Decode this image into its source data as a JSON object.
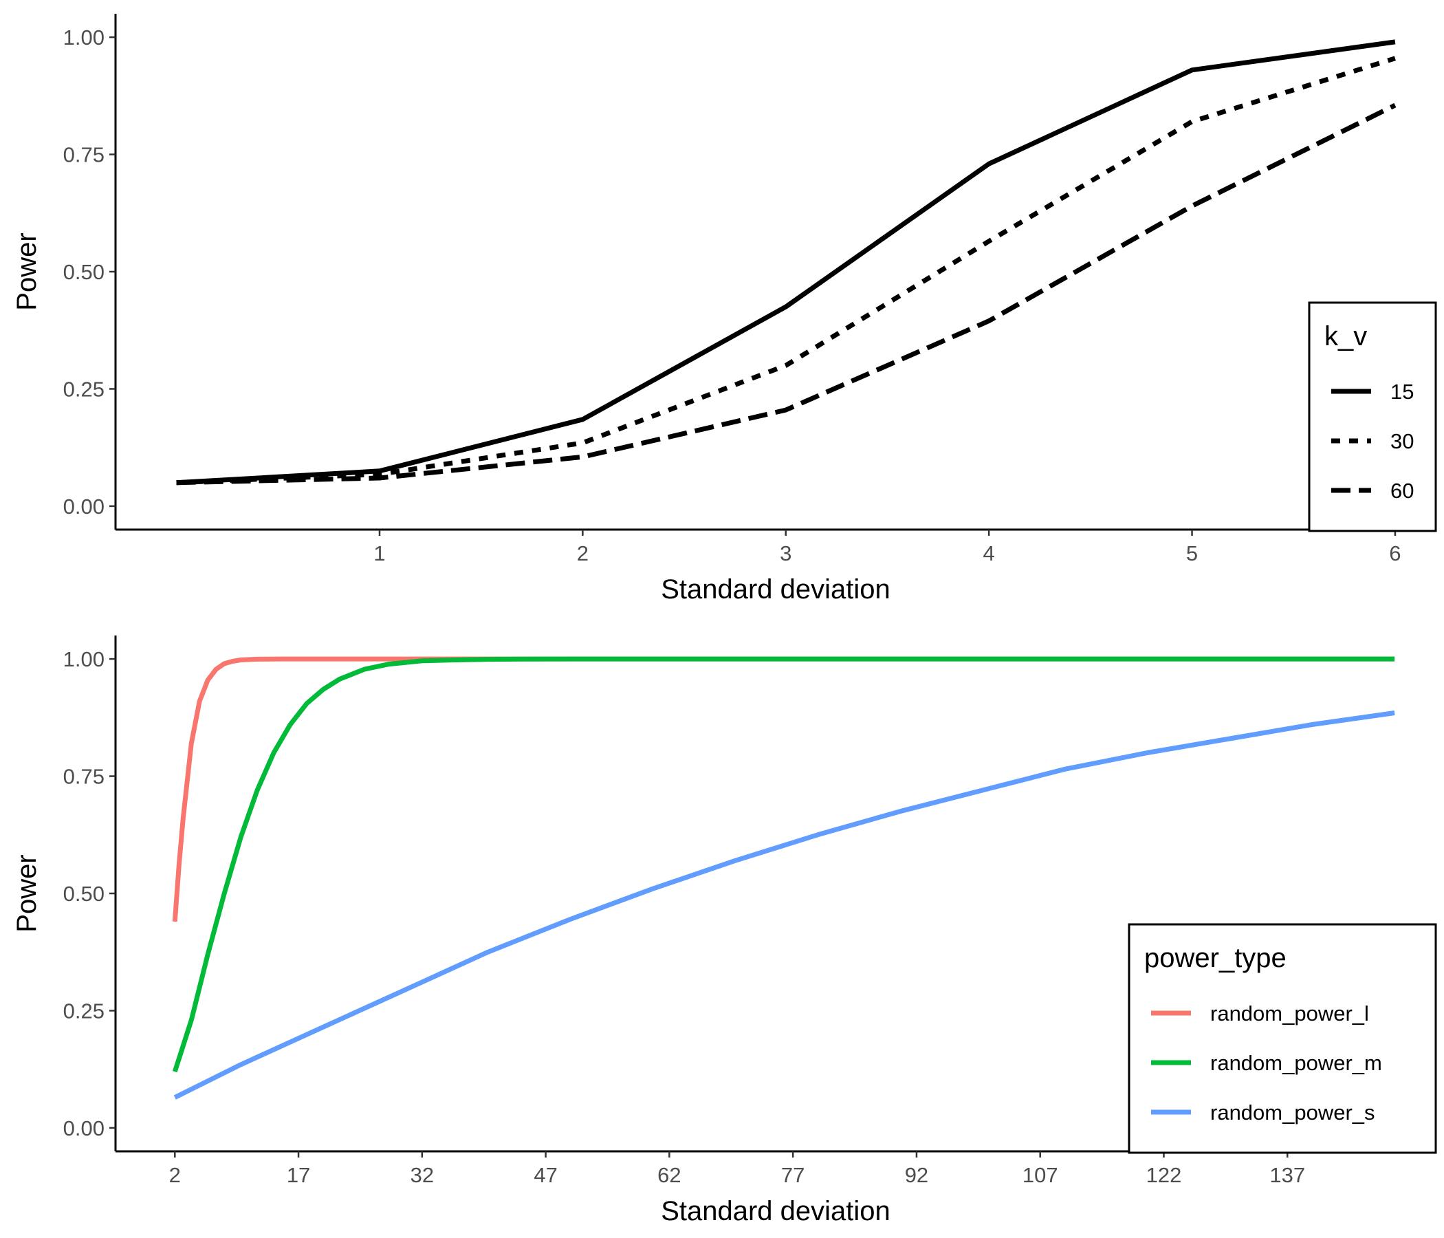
{
  "chart_data": [
    {
      "type": "line",
      "xlabel": "Standard deviation",
      "ylabel": "Power",
      "x": [
        0,
        1,
        2,
        3,
        4,
        5,
        6
      ],
      "xticks": [
        1,
        2,
        3,
        4,
        5,
        6
      ],
      "yticks": [
        "0.00",
        "0.25",
        "0.50",
        "0.75",
        "1.00"
      ],
      "xlim": [
        -0.3,
        6.2
      ],
      "ylim": [
        -0.05,
        1.05
      ],
      "grid": false,
      "legend_position": "bottom-right",
      "legend_title": "k_v",
      "series": [
        {
          "name": "15",
          "linetype": "solid",
          "values": [
            0.05,
            0.075,
            0.185,
            0.425,
            0.73,
            0.93,
            0.99
          ]
        },
        {
          "name": "30",
          "linetype": "dotted",
          "values": [
            0.05,
            0.068,
            0.135,
            0.3,
            0.565,
            0.82,
            0.955
          ]
        },
        {
          "name": "60",
          "linetype": "dashed",
          "values": [
            0.05,
            0.06,
            0.105,
            0.205,
            0.395,
            0.64,
            0.855
          ]
        }
      ]
    },
    {
      "type": "line",
      "xlabel": "Standard deviation",
      "ylabel": "Power",
      "xticks": [
        2,
        17,
        32,
        47,
        62,
        77,
        92,
        107,
        122,
        137
      ],
      "yticks": [
        "0.00",
        "0.25",
        "0.50",
        "0.75",
        "1.00"
      ],
      "xlim": [
        -5.2,
        155
      ],
      "ylim": [
        -0.05,
        1.05
      ],
      "grid": false,
      "legend_position": "bottom-right",
      "legend_title": "power_type",
      "series": [
        {
          "name": "random_power_l",
          "color": "#F8766D",
          "x": [
            2,
            2.5,
            3,
            4,
            5,
            6,
            7,
            8,
            9,
            10,
            12,
            15,
            20,
            30,
            50,
            150
          ],
          "values": [
            0.44,
            0.56,
            0.66,
            0.82,
            0.91,
            0.955,
            0.978,
            0.99,
            0.995,
            0.998,
            0.9995,
            1.0,
            1.0,
            1.0,
            1.0,
            1.0
          ]
        },
        {
          "name": "random_power_m",
          "color": "#00BA38",
          "x": [
            2,
            4,
            6,
            8,
            10,
            12,
            14,
            16,
            18,
            20,
            22,
            25,
            28,
            32,
            36,
            40,
            45,
            50,
            60,
            150
          ],
          "values": [
            0.12,
            0.23,
            0.37,
            0.5,
            0.62,
            0.72,
            0.8,
            0.86,
            0.905,
            0.935,
            0.957,
            0.978,
            0.989,
            0.996,
            0.998,
            0.9993,
            0.9998,
            1.0,
            1.0,
            1.0
          ]
        },
        {
          "name": "random_power_s",
          "color": "#619CFF",
          "x": [
            2,
            10,
            20,
            30,
            40,
            50,
            60,
            70,
            80,
            90,
            100,
            110,
            120,
            130,
            140,
            150
          ],
          "values": [
            0.065,
            0.135,
            0.215,
            0.295,
            0.375,
            0.445,
            0.51,
            0.57,
            0.625,
            0.675,
            0.72,
            0.765,
            0.8,
            0.83,
            0.86,
            0.885
          ]
        }
      ]
    }
  ]
}
